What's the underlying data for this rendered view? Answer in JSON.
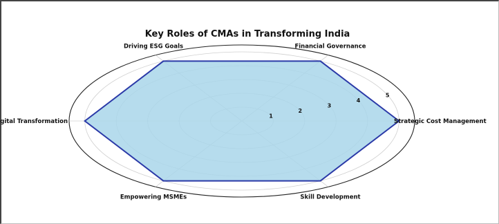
{
  "chart_data": {
    "type": "radar",
    "title": "Key Roles of CMAs in Transforming India",
    "categories": [
      "Strategic Cost Management",
      "Financial Governance",
      "Driving ESG Goals",
      "Digital Transformation",
      "Empowering MSMEs",
      "Skill Development"
    ],
    "series": [
      {
        "values": [
          5,
          5,
          5,
          5,
          5,
          5
        ]
      }
    ],
    "rlim": [
      0,
      5.5
    ],
    "rticks": [
      1,
      2,
      3,
      4,
      5
    ],
    "grid": true,
    "colors": {
      "fill": "#a9d6ea",
      "line": "#2b3aa8",
      "grid": "#d0d0d0",
      "outer": "#222222"
    }
  }
}
